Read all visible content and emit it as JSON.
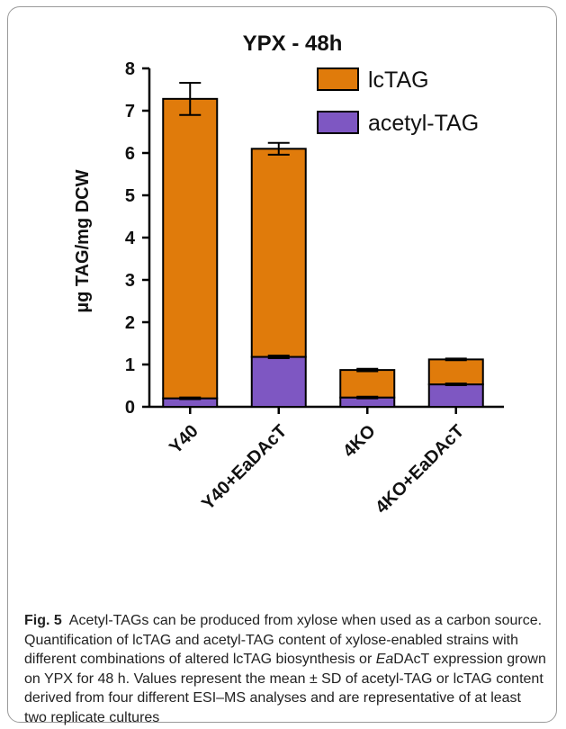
{
  "chart_data": {
    "type": "bar",
    "stacked": true,
    "title": "YPX - 48h",
    "ylabel": "µg TAG/mg DCW",
    "xlabel": "",
    "ylim": [
      0,
      8
    ],
    "yticks": [
      0,
      1,
      2,
      3,
      4,
      5,
      6,
      7,
      8
    ],
    "categories": [
      "Y40",
      "Y40+EaDAcT",
      "4KO",
      "4KO+EaDAcT"
    ],
    "series": [
      {
        "name": "acetyl-TAG",
        "color": "#7e57c2",
        "values": [
          0.2,
          1.18,
          0.22,
          0.53
        ],
        "error": [
          0.02,
          0.03,
          0.02,
          0.02
        ]
      },
      {
        "name": "lcTAG",
        "color": "#e07b0b",
        "values": [
          7.08,
          4.92,
          0.65,
          0.59
        ],
        "error": [
          0.38,
          0.14,
          0.03,
          0.02
        ]
      }
    ],
    "legend_position": "top-right",
    "grid": false
  },
  "caption": {
    "label": "Fig. 5",
    "title": "Acetyl-TAGs can be produced from xylose when used as a carbon source.",
    "body_1": "Quantification of lcTAG and acetyl-TAG content of xylose-enabled strains with different combinations of altered lcTAG biosynthesis or",
    "italic": "Ea",
    "body_2": "DAcT expression grown on YPX for 48 h. Values represent the mean ± SD of acetyl-TAG or lcTAG content derived from four different ESI–MS analyses and are representative of at least two replicate cultures"
  }
}
